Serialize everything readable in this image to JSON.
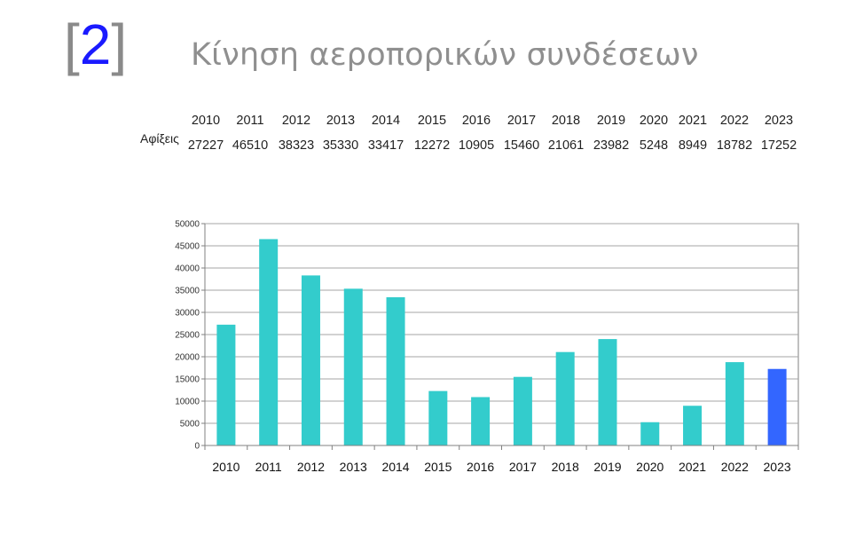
{
  "slide": {
    "bracket_open": "[",
    "number": "2",
    "bracket_close": "]",
    "title": "Κίνηση αεροπορικών συνδέσεων"
  },
  "summary_table": {
    "row_label": "Αφίξεις",
    "years": [
      "2010",
      "2011",
      "2012",
      "2013",
      "2014",
      "2015",
      "2016",
      "2017",
      "2018",
      "2019",
      "2020",
      "2021",
      "2022",
      "2023"
    ],
    "values": [
      "27227",
      "46510",
      "38323",
      "35330",
      "33417",
      "12272",
      "10905",
      "15460",
      "21061",
      "23982",
      "5248",
      "8949",
      "18782",
      "17252"
    ]
  },
  "chart_data": {
    "type": "bar",
    "categories": [
      "2010",
      "2011",
      "2012",
      "2013",
      "2014",
      "2015",
      "2016",
      "2017",
      "2018",
      "2019",
      "2020",
      "2021",
      "2022",
      "2023"
    ],
    "series": [
      {
        "values": [
          27227,
          46510,
          38323,
          35330,
          33417,
          12272,
          10905,
          15460,
          21061,
          23982,
          5248,
          8949,
          18782,
          17252
        ]
      }
    ],
    "title": "",
    "xlabel": "",
    "ylabel": "",
    "ylim": [
      0,
      50000
    ],
    "yticks": [
      0,
      5000,
      10000,
      15000,
      20000,
      25000,
      30000,
      35000,
      40000,
      45000,
      50000
    ],
    "grid": true,
    "legend": "none",
    "colors": {
      "bar": "#33cccc",
      "highlight_bar": "#3366ff",
      "highlight_category": "2023",
      "gridline": "#a6a6a6"
    }
  }
}
